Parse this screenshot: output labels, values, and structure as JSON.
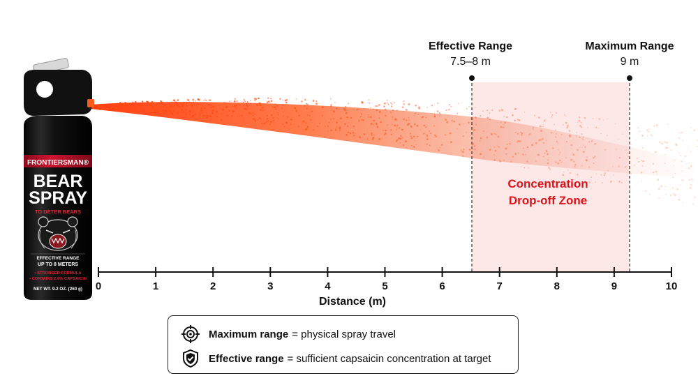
{
  "can": {
    "brand": "FRONTIERSMAN®",
    "line1": "BEAR",
    "line2": "SPRAY",
    "tagline": "TO DETER BEARS",
    "range_caption": "EFFECTIVE RANGE",
    "range_value": "UP TO 8 METERS",
    "feature1": "• STRONGER FORMULA",
    "feature2": "• CONTAINS 2.0% CAPSAICIN",
    "net_weight": "NET WT. 9.2 OZ. (260 g)"
  },
  "markers": {
    "effective": {
      "title": "Effective Range",
      "value": "7.5–8 m"
    },
    "maximum": {
      "title": "Maximum Range",
      "value": "9 m"
    }
  },
  "zone": {
    "line1": "Concentration",
    "line2": "Drop-off Zone"
  },
  "chart_data": {
    "type": "diagram",
    "x_axis": {
      "label": "Distance (m)",
      "min": 0,
      "max": 10,
      "ticks": [
        "0",
        "1",
        "2",
        "3",
        "4",
        "5",
        "6",
        "7",
        "8",
        "9",
        "10"
      ]
    },
    "effective_range_m": [
      7.5,
      8
    ],
    "maximum_range_m": 9
  },
  "legend": {
    "max_term": "Maximum range",
    "max_def": "= physical spray travel",
    "eff_term": "Effective range",
    "eff_def": "= sufficient capsaicin concentration at target"
  },
  "colors": {
    "spray": "#ff4a12",
    "zone_fill": "#fde8e8",
    "zone_text": "#d8141b",
    "can_band": "#c8102e"
  }
}
